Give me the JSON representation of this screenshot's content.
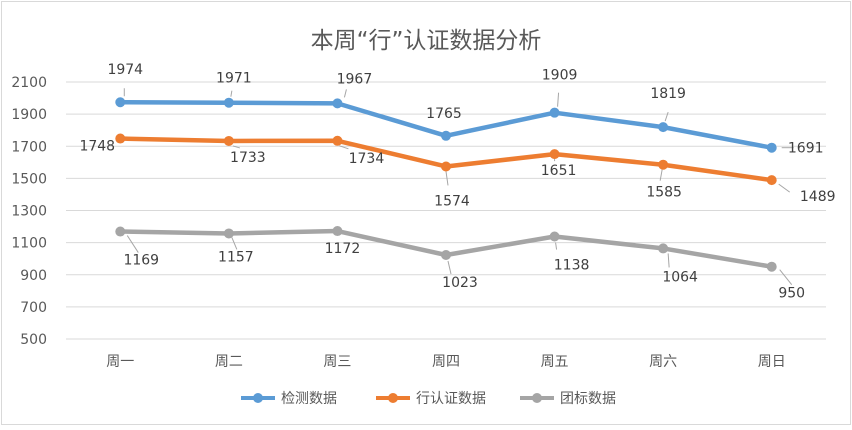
{
  "chart_data": {
    "type": "line",
    "title": "本周“行”认证数据分析",
    "categories": [
      "周一",
      "周二",
      "周三",
      "周四",
      "周五",
      "周六",
      "周日"
    ],
    "ylim": [
      500,
      2100
    ],
    "yticks": [
      500,
      700,
      900,
      1100,
      1300,
      1500,
      1700,
      1900,
      2100
    ],
    "grid": true,
    "legend_position": "bottom",
    "series": [
      {
        "name": "检测数据",
        "color": "#5B9BD5",
        "values": [
          1974,
          1971,
          1967,
          1765,
          1909,
          1819,
          1691
        ]
      },
      {
        "name": "行认证数据",
        "color": "#ED7D31",
        "values": [
          1748,
          1733,
          1734,
          1574,
          1651,
          1585,
          1489
        ]
      },
      {
        "name": "团标数据",
        "color": "#A5A5A5",
        "values": [
          1169,
          1157,
          1172,
          1023,
          1138,
          1064,
          950
        ]
      }
    ]
  }
}
